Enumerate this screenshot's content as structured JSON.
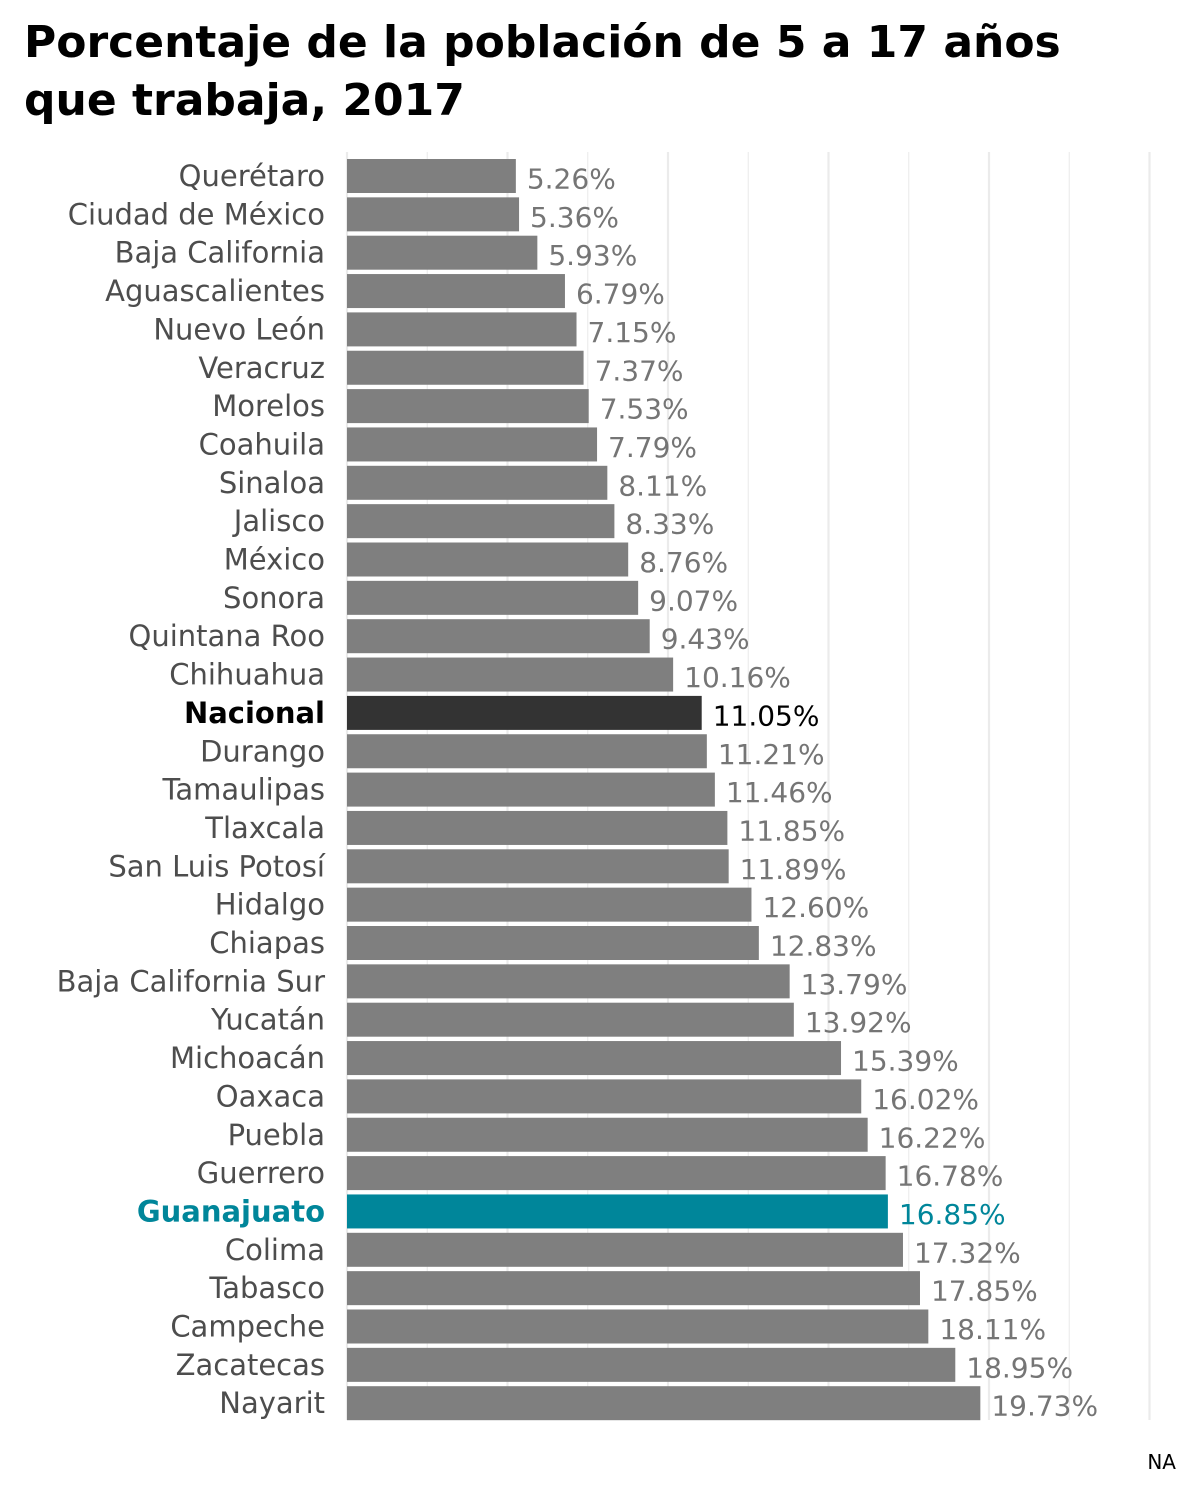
{
  "chart_data": {
    "type": "bar",
    "orientation": "horizontal",
    "title": "Porcentaje de la población de 5 a 17 años que trabaja, 2017",
    "xlabel": "",
    "ylabel": "",
    "xlim": [
      0,
      25
    ],
    "grid": true,
    "caption": "NA",
    "colors": {
      "default": "#7f7f7f",
      "nacional": "#333333",
      "highlight": "#00869a",
      "default_label": "#757575",
      "nacional_label": "#000000",
      "highlight_label": "#00869a",
      "grid": "#ebebeb"
    },
    "bars": [
      {
        "category": "Querétaro",
        "value": 5.26,
        "label": "5.26%",
        "style": "default"
      },
      {
        "category": "Ciudad de México",
        "value": 5.36,
        "label": "5.36%",
        "style": "default"
      },
      {
        "category": "Baja California",
        "value": 5.93,
        "label": "5.93%",
        "style": "default"
      },
      {
        "category": "Aguascalientes",
        "value": 6.79,
        "label": "6.79%",
        "style": "default"
      },
      {
        "category": "Nuevo León",
        "value": 7.15,
        "label": "7.15%",
        "style": "default"
      },
      {
        "category": "Veracruz",
        "value": 7.37,
        "label": "7.37%",
        "style": "default"
      },
      {
        "category": "Morelos",
        "value": 7.53,
        "label": "7.53%",
        "style": "default"
      },
      {
        "category": "Coahuila",
        "value": 7.79,
        "label": "7.79%",
        "style": "default"
      },
      {
        "category": "Sinaloa",
        "value": 8.11,
        "label": "8.11%",
        "style": "default"
      },
      {
        "category": "Jalisco",
        "value": 8.33,
        "label": "8.33%",
        "style": "default"
      },
      {
        "category": "México",
        "value": 8.76,
        "label": "8.76%",
        "style": "default"
      },
      {
        "category": "Sonora",
        "value": 9.07,
        "label": "9.07%",
        "style": "default"
      },
      {
        "category": "Quintana Roo",
        "value": 9.43,
        "label": "9.43%",
        "style": "default"
      },
      {
        "category": "Chihuahua",
        "value": 10.16,
        "label": "10.16%",
        "style": "default"
      },
      {
        "category": "Nacional",
        "value": 11.05,
        "label": "11.05%",
        "style": "nacional"
      },
      {
        "category": "Durango",
        "value": 11.21,
        "label": "11.21%",
        "style": "default"
      },
      {
        "category": "Tamaulipas",
        "value": 11.46,
        "label": "11.46%",
        "style": "default"
      },
      {
        "category": "Tlaxcala",
        "value": 11.85,
        "label": "11.85%",
        "style": "default"
      },
      {
        "category": "San Luis Potosí",
        "value": 11.89,
        "label": "11.89%",
        "style": "default"
      },
      {
        "category": "Hidalgo",
        "value": 12.6,
        "label": "12.60%",
        "style": "default"
      },
      {
        "category": "Chiapas",
        "value": 12.83,
        "label": "12.83%",
        "style": "default"
      },
      {
        "category": "Baja California Sur",
        "value": 13.79,
        "label": "13.79%",
        "style": "default"
      },
      {
        "category": "Yucatán",
        "value": 13.92,
        "label": "13.92%",
        "style": "default"
      },
      {
        "category": "Michoacán",
        "value": 15.39,
        "label": "15.39%",
        "style": "default"
      },
      {
        "category": "Oaxaca",
        "value": 16.02,
        "label": "16.02%",
        "style": "default"
      },
      {
        "category": "Puebla",
        "value": 16.22,
        "label": "16.22%",
        "style": "default"
      },
      {
        "category": "Guerrero",
        "value": 16.78,
        "label": "16.78%",
        "style": "default"
      },
      {
        "category": "Guanajuato",
        "value": 16.85,
        "label": "16.85%",
        "style": "highlight"
      },
      {
        "category": "Colima",
        "value": 17.32,
        "label": "17.32%",
        "style": "default"
      },
      {
        "category": "Tabasco",
        "value": 17.85,
        "label": "17.85%",
        "style": "default"
      },
      {
        "category": "Campeche",
        "value": 18.11,
        "label": "18.11%",
        "style": "default"
      },
      {
        "category": "Zacatecas",
        "value": 18.95,
        "label": "18.95%",
        "style": "default"
      },
      {
        "category": "Nayarit",
        "value": 19.73,
        "label": "19.73%",
        "style": "default"
      }
    ]
  }
}
